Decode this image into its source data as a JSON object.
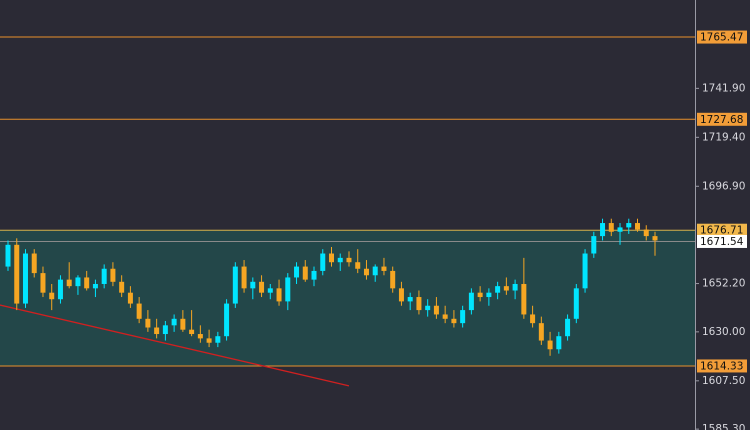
{
  "chart_data": {
    "type": "candlestick",
    "up_color": "#00e5ff",
    "down_color": "#f5a623",
    "ylim": [
      1584.9,
      1782.5
    ],
    "yticks": [
      {
        "value": 1741.9,
        "label": "1741.90"
      },
      {
        "value": 1719.4,
        "label": "1719.40"
      },
      {
        "value": 1696.9,
        "label": "1696.90"
      },
      {
        "value": 1652.2,
        "label": "1652.20"
      },
      {
        "value": 1630,
        "label": "1630.00"
      },
      {
        "value": 1607.5,
        "label": "1607.50"
      },
      {
        "value": 1585.3,
        "label": "1585.30"
      }
    ],
    "zone": {
      "values": [
        1676.71,
        1614.33
      ],
      "color": "#224c4c"
    },
    "levels": [
      {
        "value": 1765.47,
        "color": "#e8902c",
        "label_color": "#f29d38",
        "text_color": "#111111"
      },
      {
        "value": 1727.68,
        "color": "#e8902c",
        "label_color": "#f29d38",
        "text_color": "#111111"
      },
      {
        "value": 1676.71,
        "color": "#d6b04a",
        "label_color": "#f2b84b",
        "text_color": "#111111"
      },
      {
        "value": 1671.54,
        "color": "#8a8a8a",
        "label_color": "#ffffff",
        "text_color": "#111111"
      },
      {
        "value": 1614.33,
        "color": "#e8902c",
        "label_color": "#f29d38",
        "text_color": "#111111"
      }
    ],
    "trendline": {
      "x": [
        -1,
        39
      ],
      "values": [
        1642.4,
        1605.2
      ],
      "color": "#d02020"
    },
    "candles": {
      "open": [
        1660,
        1670,
        1643,
        1666,
        1657,
        1648,
        1645,
        1654,
        1651,
        1655,
        1650,
        1652,
        1659,
        1653,
        1648,
        1643,
        1636,
        1632,
        1629,
        1633,
        1636,
        1631,
        1629,
        1627,
        1625,
        1628,
        1643,
        1660,
        1650,
        1653,
        1648,
        1650,
        1644,
        1655,
        1660,
        1654,
        1658,
        1666,
        1662,
        1664,
        1662,
        1659,
        1656,
        1660,
        1658,
        1650,
        1644,
        1646,
        1640,
        1642,
        1638,
        1636,
        1634,
        1640,
        1648,
        1646,
        1648,
        1651,
        1649,
        1652,
        1638,
        1634,
        1626,
        1622,
        1628,
        1636,
        1650,
        1666,
        1674,
        1680,
        1676,
        1678,
        1680,
        1677,
        1674
      ],
      "high": [
        1672,
        1673,
        1668,
        1668,
        1660,
        1652,
        1656,
        1662,
        1656,
        1658,
        1654,
        1661,
        1662,
        1656,
        1651,
        1646,
        1640,
        1636,
        1635,
        1638,
        1640,
        1640,
        1633,
        1631,
        1630,
        1645,
        1662,
        1663,
        1655,
        1656,
        1652,
        1654,
        1657,
        1662,
        1663,
        1660,
        1668,
        1669,
        1666,
        1667,
        1668,
        1663,
        1661,
        1664,
        1660,
        1653,
        1648,
        1649,
        1645,
        1646,
        1642,
        1640,
        1642,
        1650,
        1651,
        1650,
        1653,
        1655,
        1654,
        1664,
        1642,
        1637,
        1630,
        1630,
        1638,
        1652,
        1668,
        1676,
        1682,
        1682,
        1680,
        1682,
        1682,
        1679,
        1676
      ],
      "low": [
        1658,
        1640,
        1641,
        1655,
        1646,
        1640,
        1643,
        1650,
        1647,
        1649,
        1646,
        1650,
        1651,
        1646,
        1641,
        1634,
        1630,
        1627,
        1626,
        1630,
        1630,
        1628,
        1625,
        1623,
        1623,
        1626,
        1641,
        1648,
        1645,
        1646,
        1645,
        1642,
        1640,
        1652,
        1653,
        1651,
        1656,
        1660,
        1658,
        1660,
        1657,
        1654,
        1653,
        1656,
        1648,
        1642,
        1640,
        1638,
        1637,
        1636,
        1634,
        1632,
        1632,
        1638,
        1644,
        1642,
        1645,
        1647,
        1645,
        1636,
        1632,
        1624,
        1619,
        1620,
        1626,
        1634,
        1648,
        1664,
        1672,
        1674,
        1670,
        1675,
        1676,
        1672,
        1665
      ],
      "close": [
        1670,
        1643,
        1666,
        1657,
        1648,
        1645,
        1654,
        1651,
        1655,
        1650,
        1652,
        1659,
        1653,
        1648,
        1643,
        1636,
        1632,
        1629,
        1633,
        1636,
        1631,
        1629,
        1627,
        1625,
        1628,
        1643,
        1660,
        1650,
        1653,
        1648,
        1650,
        1644,
        1655,
        1660,
        1654,
        1658,
        1666,
        1662,
        1664,
        1662,
        1659,
        1656,
        1660,
        1658,
        1650,
        1644,
        1646,
        1640,
        1642,
        1638,
        1636,
        1634,
        1640,
        1648,
        1646,
        1648,
        1651,
        1649,
        1652,
        1638,
        1634,
        1626,
        1622,
        1628,
        1636,
        1650,
        1666,
        1674,
        1680,
        1676,
        1678,
        1680,
        1677,
        1674,
        1672
      ]
    }
  }
}
